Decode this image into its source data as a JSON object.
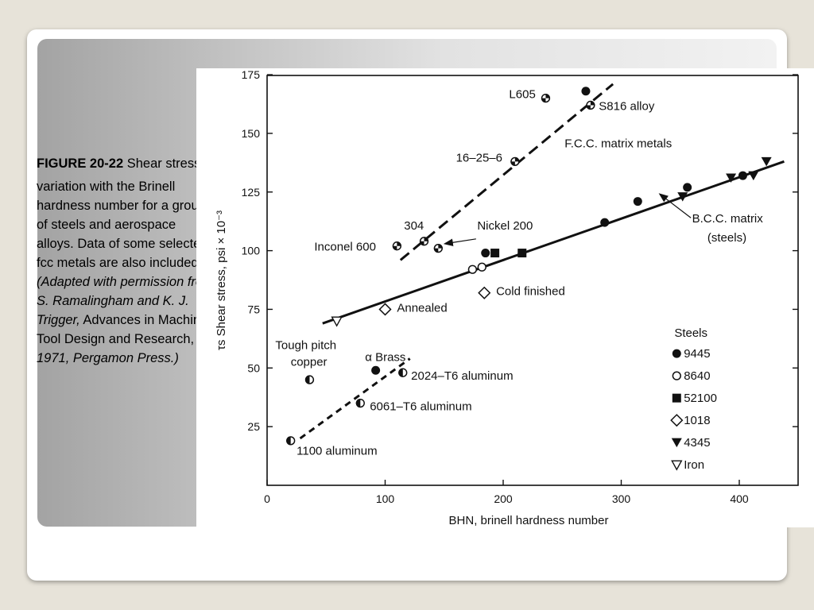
{
  "caption": {
    "label": "FIGURE 20-22",
    "text1": " Shear stress τ",
    "sub": "s",
    "text2": " variation with the Brinell hardness number for a group of steels and aerospace alloys. Data of some selected fcc metals are also included. ",
    "adapted": "(Adapted with permission from S. Ramalingham and K. J. Trigger,",
    "journal": " Advances in Machine Tool Design and Research, ",
    "pub": "1971, Pergamon Press.)"
  },
  "chart_data": {
    "type": "scatter",
    "xlabel": "BHN, brinell hardness number",
    "ylabel": "τs Shear stress, psi × 10⁻³",
    "xlim": [
      0,
      450
    ],
    "ylim": [
      0,
      175
    ],
    "x_ticks": [
      0,
      100,
      200,
      300,
      400
    ],
    "y_ticks": [
      25,
      50,
      75,
      100,
      125,
      150,
      175
    ],
    "legend": {
      "title": "Steels",
      "placement": "right",
      "entries": [
        {
          "marker": "filled-circle",
          "label": "9445"
        },
        {
          "marker": "open-circle",
          "label": "8640"
        },
        {
          "marker": "filled-square",
          "label": "52100"
        },
        {
          "marker": "open-diamond",
          "label": "1018"
        },
        {
          "marker": "filled-triangle-down",
          "label": "4345"
        },
        {
          "marker": "open-triangle-down",
          "label": "Iron"
        }
      ]
    },
    "series": [
      {
        "name": "9445",
        "marker": "filled-circle",
        "points": [
          [
            92,
            49
          ],
          [
            185,
            99
          ],
          [
            270,
            168
          ],
          [
            286,
            112
          ],
          [
            314,
            121
          ],
          [
            356,
            127
          ],
          [
            403,
            132
          ]
        ]
      },
      {
        "name": "8640",
        "marker": "open-circle",
        "points": [
          [
            174,
            92
          ],
          [
            182,
            93
          ]
        ]
      },
      {
        "name": "52100",
        "marker": "filled-square",
        "points": [
          [
            193,
            99
          ],
          [
            216,
            99
          ]
        ]
      },
      {
        "name": "1018",
        "marker": "open-diamond",
        "points": [
          [
            100,
            75
          ],
          [
            184,
            82
          ]
        ]
      },
      {
        "name": "4345",
        "marker": "filled-triangle-down",
        "points": [
          [
            352,
            123
          ],
          [
            393,
            131
          ],
          [
            412,
            132
          ],
          [
            423,
            138
          ]
        ]
      },
      {
        "name": "Iron",
        "marker": "open-triangle-down",
        "points": [
          [
            59,
            70
          ]
        ]
      },
      {
        "name": "",
        "marker": "quartered-circle",
        "points": [
          [
            110,
            102
          ],
          [
            133,
            104
          ],
          [
            145,
            101
          ],
          [
            210,
            138
          ],
          [
            236,
            165
          ],
          [
            274,
            162
          ]
        ]
      },
      {
        "name": "",
        "marker": "half-circle",
        "points": [
          [
            36,
            45
          ],
          [
            20,
            19
          ],
          [
            79,
            35
          ],
          [
            115,
            48
          ]
        ]
      }
    ],
    "fit_lines": [
      {
        "label": "B.C.C. matrix (steels)",
        "style": "solid",
        "from": [
          47,
          69
        ],
        "to": [
          438,
          138
        ]
      },
      {
        "label": "F.C.C. matrix metals",
        "style": "long-dash",
        "from": [
          113,
          96
        ],
        "to": [
          293,
          171
        ]
      },
      {
        "label": "",
        "style": "short-dash",
        "from": [
          28,
          20
        ],
        "to": [
          121,
          54
        ]
      }
    ],
    "annotations": [
      {
        "text": "L605",
        "x": 205,
        "y": 165
      },
      {
        "text": "S816 alloy",
        "x": 281,
        "y": 160
      },
      {
        "text": "16–25–6",
        "x": 160,
        "y": 138
      },
      {
        "text": "F.C.C. matrix metals",
        "x": 252,
        "y": 144
      },
      {
        "text": "304",
        "x": 116,
        "y": 109
      },
      {
        "text": "Nickel 200",
        "x": 178,
        "y": 109
      },
      {
        "text": "Inconel 600",
        "x": 40,
        "y": 100
      },
      {
        "text": "B.C.C. matrix",
        "x": 360,
        "y": 112
      },
      {
        "text": "(steels)",
        "x": 373,
        "y": 104
      },
      {
        "text": "Cold finished",
        "x": 194,
        "y": 81
      },
      {
        "text": "Annealed",
        "x": 110,
        "y": 74
      },
      {
        "text": "Tough pitch",
        "x": 7,
        "y": 58
      },
      {
        "text": "copper",
        "x": 20,
        "y": 51
      },
      {
        "text": "α Brass",
        "x": 83,
        "y": 53
      },
      {
        "text": "2024–T6 aluminum",
        "x": 122,
        "y": 45
      },
      {
        "text": "6061–T6 aluminum",
        "x": 87,
        "y": 32
      },
      {
        "text": "1100 aluminum",
        "x": 25,
        "y": 13
      }
    ],
    "arrows": [
      {
        "from": [
          177,
          105
        ],
        "to": [
          151,
          103
        ]
      },
      {
        "from": [
          359,
          114
        ],
        "to": [
          333,
          124
        ]
      }
    ]
  }
}
